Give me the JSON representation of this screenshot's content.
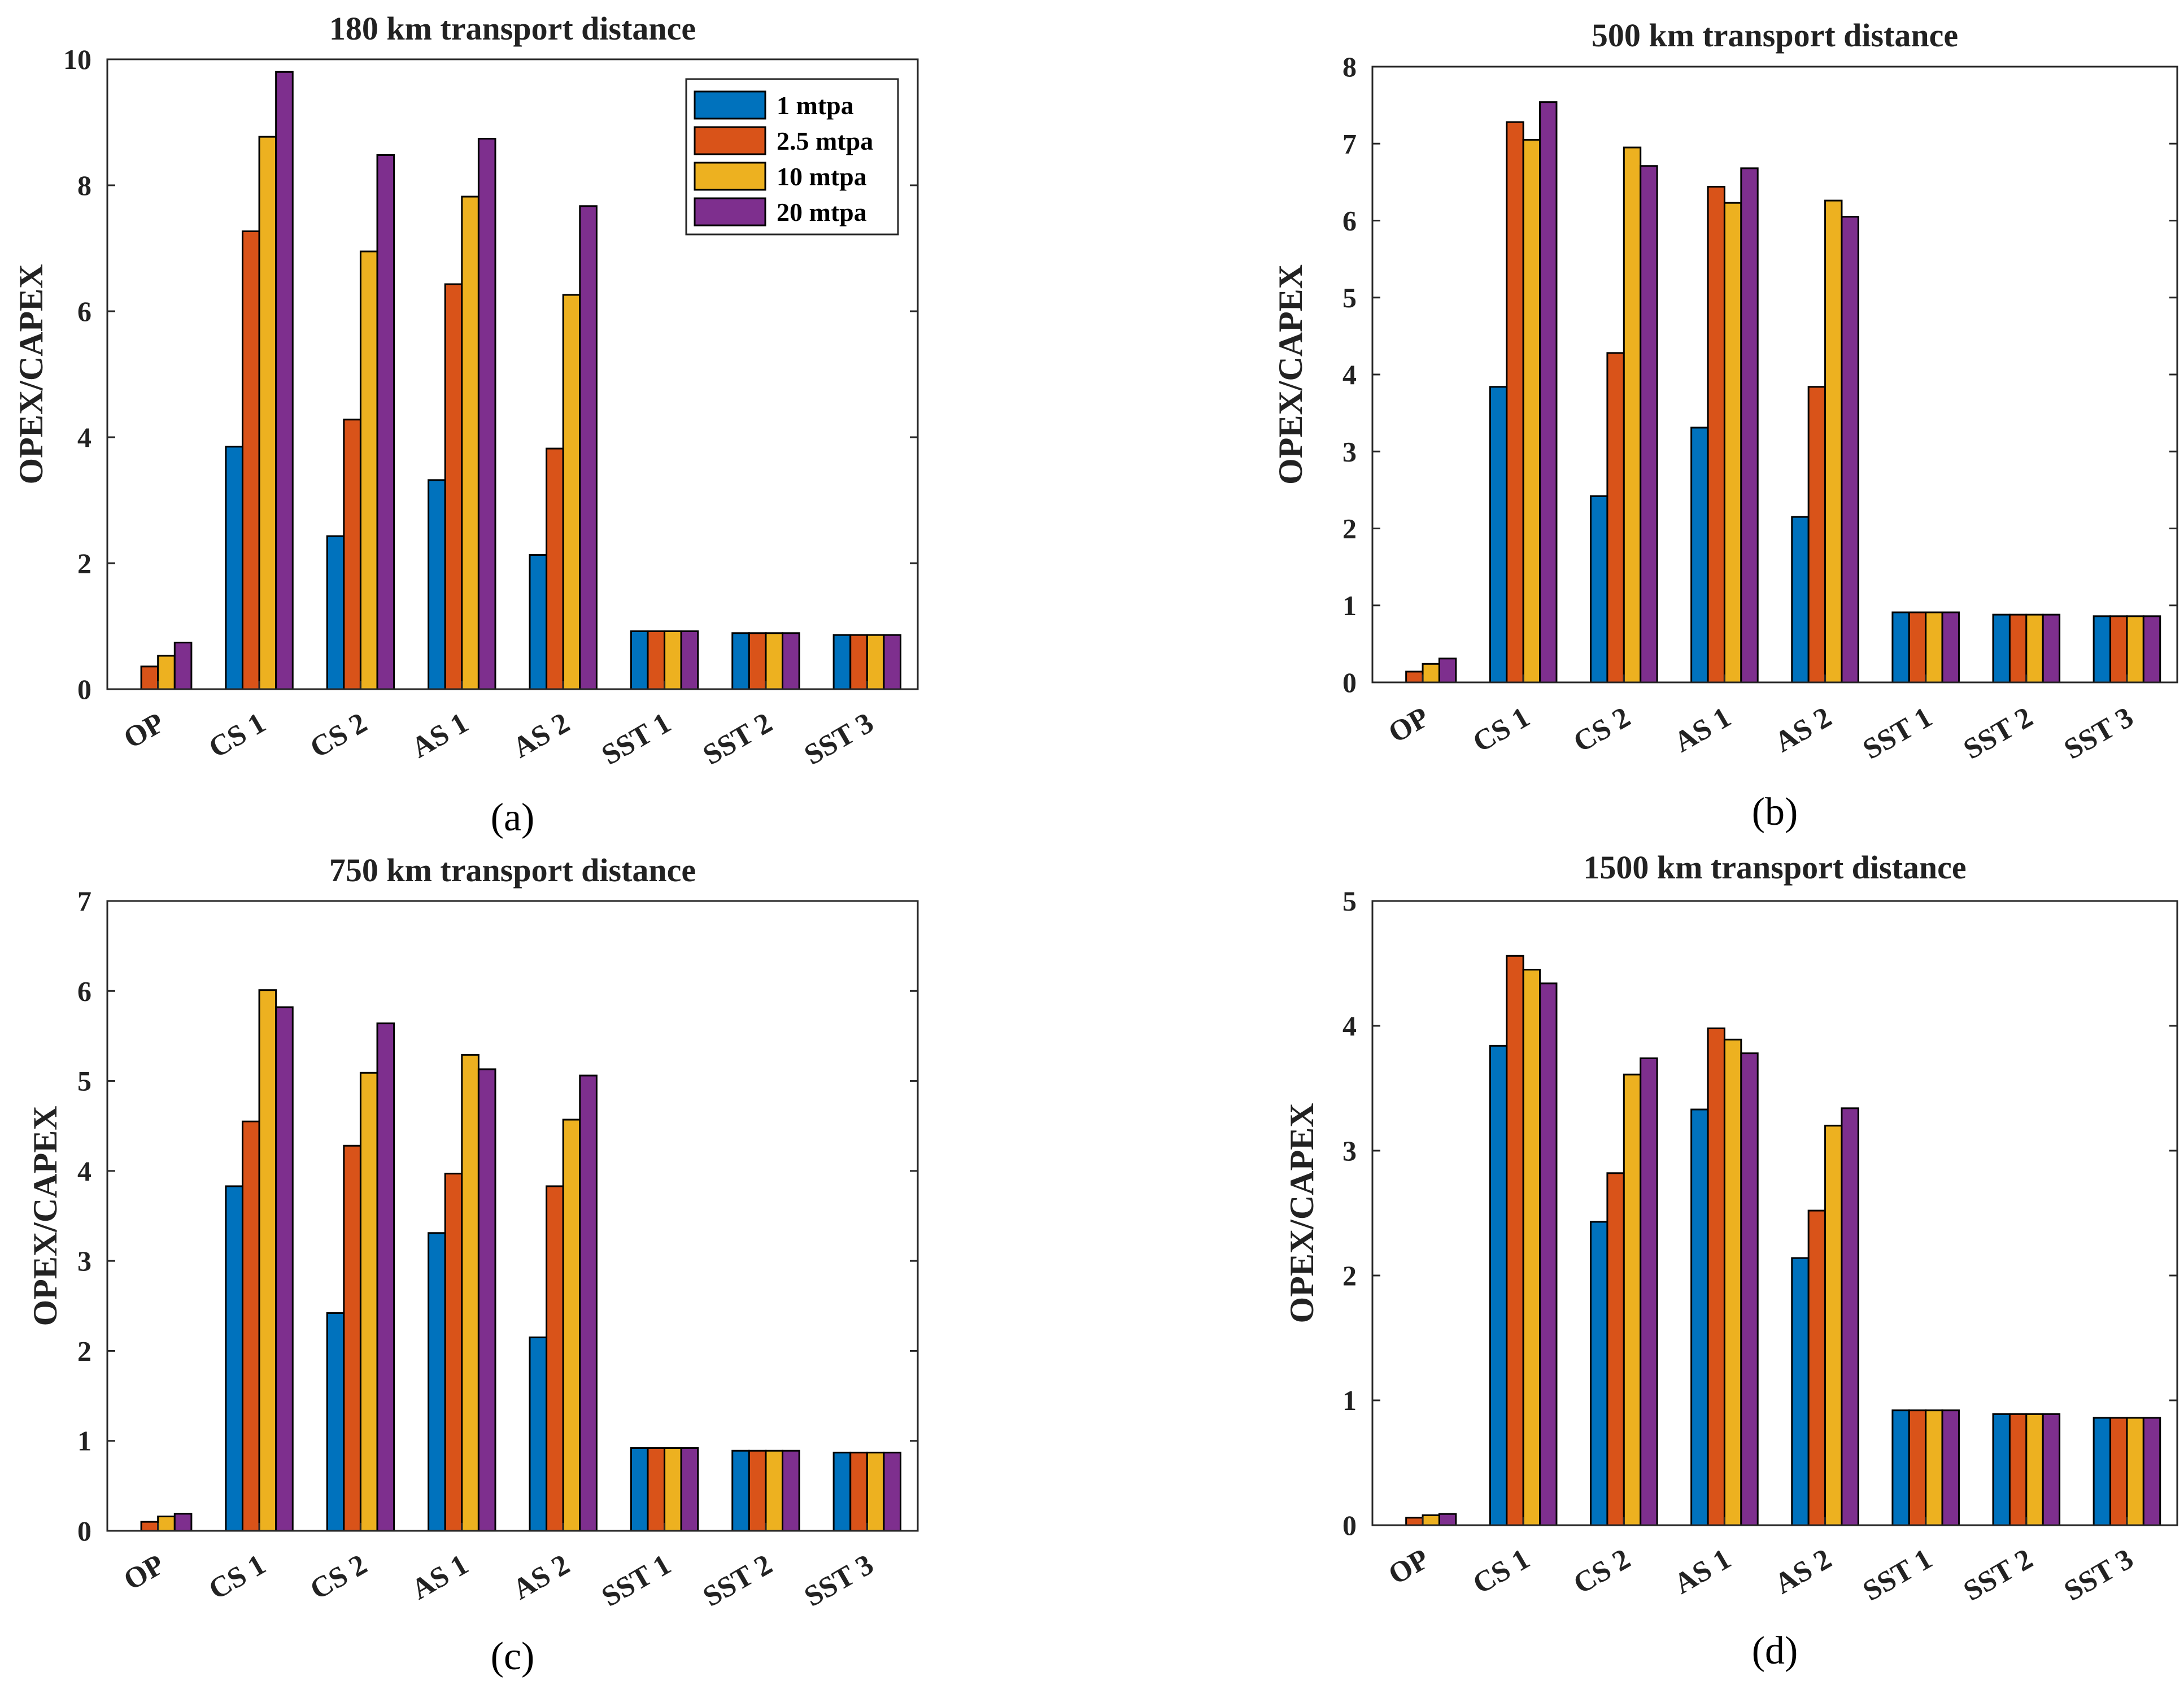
{
  "chart_data": [
    {
      "type": "bar",
      "panel": "(a)",
      "title": "180 km transport distance",
      "ylabel": "OPEX/CAPEX",
      "xlabel": "",
      "ylim": [
        0,
        10
      ],
      "yticks": [
        0,
        2,
        4,
        6,
        8,
        10
      ],
      "categories": [
        "OP",
        "CS 1",
        "CS 2",
        "AS 1",
        "AS 2",
        "SST 1",
        "SST 2",
        "SST 3"
      ],
      "series": [
        {
          "name": "1 mtpa",
          "values": [
            0.0,
            3.85,
            2.43,
            3.32,
            2.13,
            0.92,
            0.89,
            0.86
          ]
        },
        {
          "name": "2.5 mtpa",
          "values": [
            0.36,
            7.27,
            4.28,
            6.43,
            3.82,
            0.92,
            0.89,
            0.86
          ]
        },
        {
          "name": "10 mtpa",
          "values": [
            0.53,
            8.77,
            6.95,
            7.82,
            6.26,
            0.92,
            0.89,
            0.86
          ]
        },
        {
          "name": "20 mtpa",
          "values": [
            0.74,
            9.8,
            8.48,
            8.74,
            7.67,
            0.92,
            0.89,
            0.86
          ]
        }
      ],
      "legend": "top-right"
    },
    {
      "type": "bar",
      "panel": "(b)",
      "title": "500 km transport distance",
      "ylabel": "OPEX/CAPEX",
      "xlabel": "",
      "ylim": [
        0,
        8
      ],
      "yticks": [
        0,
        1,
        2,
        3,
        4,
        5,
        6,
        7,
        8
      ],
      "categories": [
        "OP",
        "CS 1",
        "CS 2",
        "AS 1",
        "AS 2",
        "SST 1",
        "SST 2",
        "SST 3"
      ],
      "series": [
        {
          "name": "1 mtpa",
          "values": [
            0.0,
            3.84,
            2.42,
            3.31,
            2.15,
            0.91,
            0.88,
            0.86
          ]
        },
        {
          "name": "2.5 mtpa",
          "values": [
            0.14,
            7.28,
            4.28,
            6.44,
            3.84,
            0.91,
            0.88,
            0.86
          ]
        },
        {
          "name": "10 mtpa",
          "values": [
            0.24,
            7.05,
            6.95,
            6.23,
            6.26,
            0.91,
            0.88,
            0.86
          ]
        },
        {
          "name": "20 mtpa",
          "values": [
            0.31,
            7.54,
            6.71,
            6.68,
            6.05,
            0.91,
            0.88,
            0.86
          ]
        }
      ],
      "legend": "none"
    },
    {
      "type": "bar",
      "panel": "(c)",
      "title": "750 km transport distance",
      "ylabel": "OPEX/CAPEX",
      "xlabel": "",
      "ylim": [
        0,
        7
      ],
      "yticks": [
        0,
        1,
        2,
        3,
        4,
        5,
        6,
        7
      ],
      "categories": [
        "OP",
        "CS 1",
        "CS 2",
        "AS 1",
        "AS 2",
        "SST 1",
        "SST 2",
        "SST 3"
      ],
      "series": [
        {
          "name": "1 mtpa",
          "values": [
            0.0,
            3.83,
            2.42,
            3.31,
            2.15,
            0.92,
            0.89,
            0.87
          ]
        },
        {
          "name": "2.5 mtpa",
          "values": [
            0.1,
            4.55,
            4.28,
            3.97,
            3.83,
            0.92,
            0.89,
            0.87
          ]
        },
        {
          "name": "10 mtpa",
          "values": [
            0.16,
            6.01,
            5.09,
            5.29,
            4.57,
            0.92,
            0.89,
            0.87
          ]
        },
        {
          "name": "20 mtpa",
          "values": [
            0.19,
            5.82,
            5.64,
            5.13,
            5.06,
            0.92,
            0.89,
            0.87
          ]
        }
      ],
      "legend": "none"
    },
    {
      "type": "bar",
      "panel": "(d)",
      "title": "1500 km transport distance",
      "ylabel": "OPEX/CAPEX",
      "xlabel": "",
      "ylim": [
        0,
        5
      ],
      "yticks": [
        0,
        1,
        2,
        3,
        4,
        5
      ],
      "categories": [
        "OP",
        "CS 1",
        "CS 2",
        "AS 1",
        "AS 2",
        "SST 1",
        "SST 2",
        "SST 3"
      ],
      "series": [
        {
          "name": "1 mtpa",
          "values": [
            0.0,
            3.84,
            2.43,
            3.33,
            2.14,
            0.92,
            0.89,
            0.86
          ]
        },
        {
          "name": "2.5 mtpa",
          "values": [
            0.06,
            4.56,
            2.82,
            3.98,
            2.52,
            0.92,
            0.89,
            0.86
          ]
        },
        {
          "name": "10 mtpa",
          "values": [
            0.08,
            4.45,
            3.61,
            3.89,
            3.2,
            0.92,
            0.89,
            0.86
          ]
        },
        {
          "name": "20 mtpa",
          "values": [
            0.09,
            4.34,
            3.74,
            3.78,
            3.34,
            0.92,
            0.89,
            0.86
          ]
        }
      ],
      "legend": "none"
    }
  ],
  "colors": {
    "1 mtpa": "#0072BD",
    "2.5 mtpa": "#D95319",
    "10 mtpa": "#EDB120",
    "20 mtpa": "#7E2F8E",
    "axis": "#262626"
  }
}
